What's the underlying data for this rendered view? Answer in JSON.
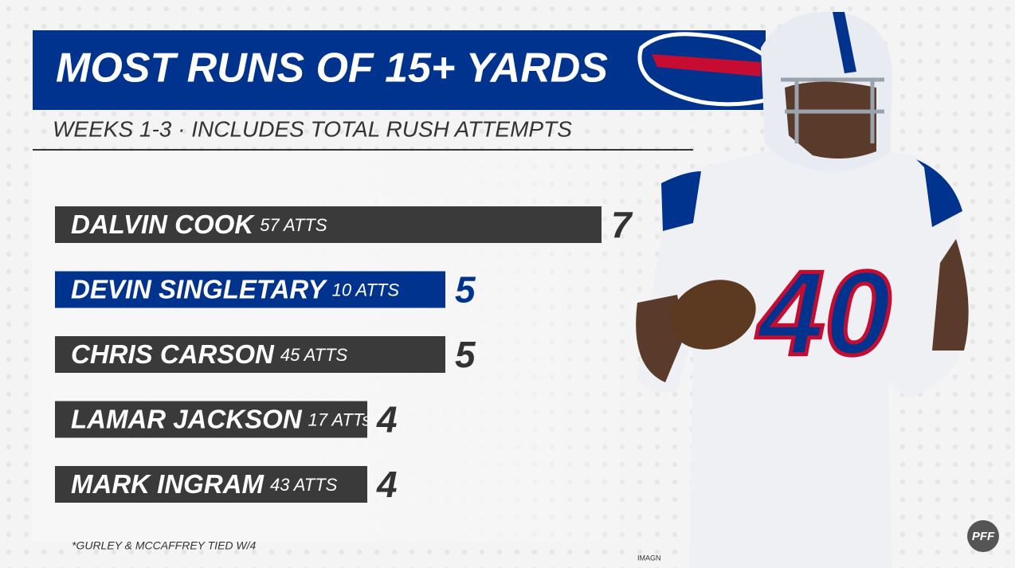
{
  "chart_data": {
    "type": "bar",
    "orientation": "horizontal",
    "title": "MOST RUNS OF 15+ YARDS",
    "subtitle": "WEEKS 1-3 · INCLUDES TOTAL RUSH ATTEMPTS",
    "categories": [
      "DALVIN COOK",
      "DEVIN SINGLETARY",
      "CHRIS CARSON",
      "LAMAR JACKSON",
      "MARK INGRAM"
    ],
    "attempt_labels": [
      "57 ATTS",
      "10 ATTS",
      "45 ATTS",
      "17 ATTs",
      "43 ATTS"
    ],
    "values": [
      7,
      5,
      5,
      4,
      4
    ],
    "colors": [
      "#3a3a3a",
      "#00338d",
      "#3a3a3a",
      "#3a3a3a",
      "#3a3a3a"
    ],
    "footnote": "*GURLEY & MCCAFFREY TIED W/4",
    "photo_credit": "IMAGN",
    "logo": "PFF"
  }
}
